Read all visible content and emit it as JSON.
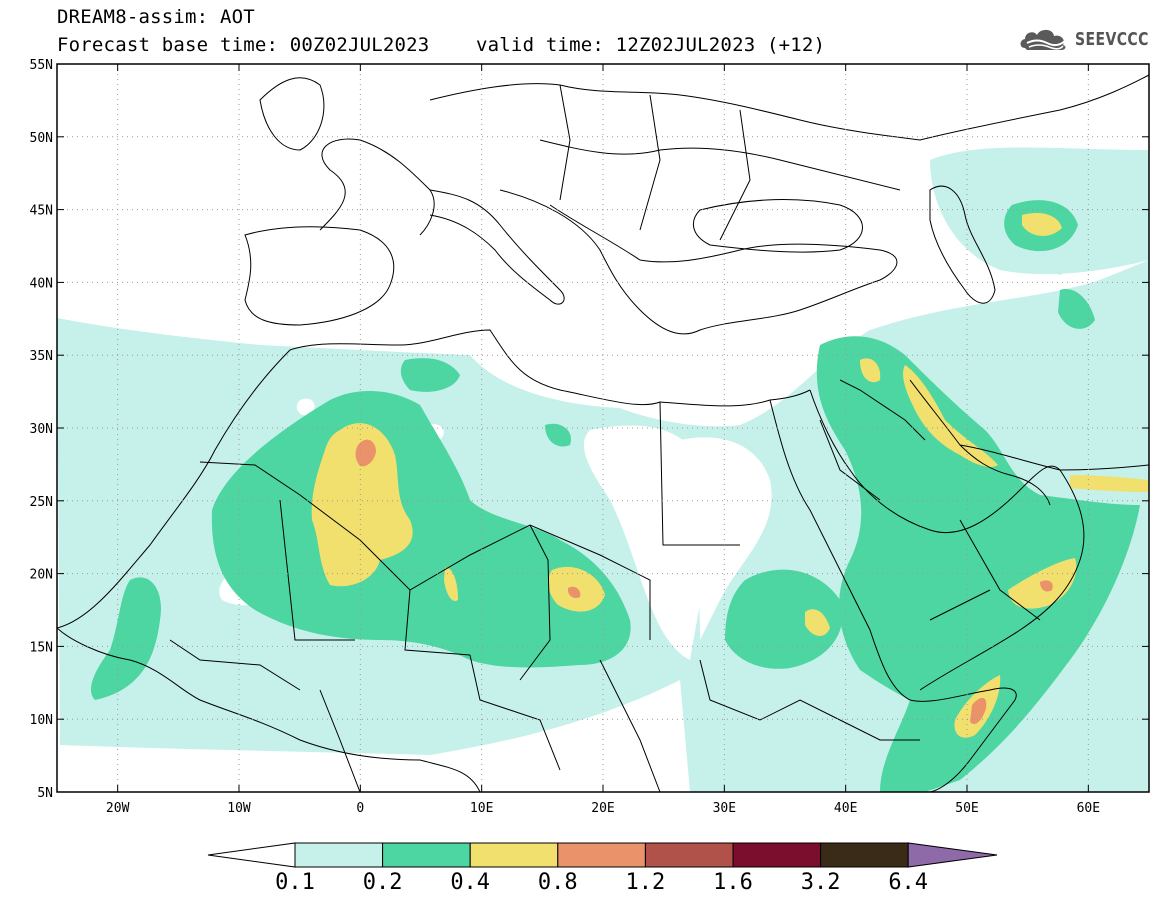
{
  "header": {
    "title": "DREAM8-assim: AOT",
    "base_time_label": "Forecast base time: 00Z02JUL2023",
    "valid_time_label": "valid time: 12Z02JUL2023 (+12)",
    "logo_text": "SEEVCCC",
    "logo_icon": "cloud-logo-icon"
  },
  "map": {
    "lat_labels": [
      "55N",
      "50N",
      "45N",
      "40N",
      "35N",
      "30N",
      "25N",
      "20N",
      "15N",
      "10N",
      "5N"
    ],
    "lon_labels": [
      "20W",
      "10W",
      "0",
      "10E",
      "20E",
      "30E",
      "40E",
      "50E",
      "60E"
    ],
    "lat_range": [
      5,
      55
    ],
    "lon_range": [
      -25,
      65
    ],
    "grid": "dotted"
  },
  "colorbar": {
    "levels": [
      "0.1",
      "0.2",
      "0.4",
      "0.8",
      "1.2",
      "1.6",
      "3.2",
      "6.4"
    ],
    "colors": [
      "#c6f0ea",
      "#4dd5a2",
      "#f2e06e",
      "#ea936a",
      "#b0524a",
      "#7a0e2c",
      "#3a2a18",
      "#8e6aa8"
    ],
    "under_color": "#ffffff"
  },
  "fields": {
    "c01": "#c6f0ea",
    "c02": "#4dd5a2",
    "c04": "#f2e06e",
    "c08": "#ea936a",
    "c12": "#b0524a"
  }
}
